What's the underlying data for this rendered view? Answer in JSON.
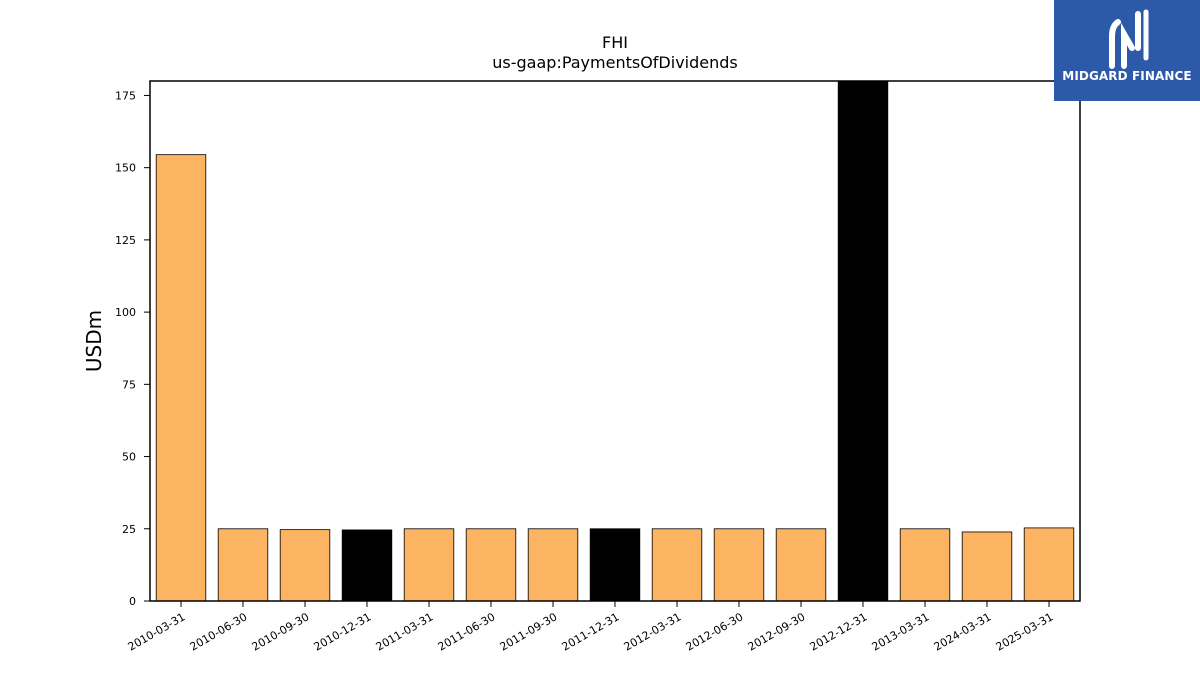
{
  "brand": {
    "name": "MIDGARD FINANCE",
    "background_color": "#2c5aa9",
    "icon": "midgard-logo-icon"
  },
  "chart_data": {
    "type": "bar",
    "title": "FHI",
    "subtitle": "us-gaap:PaymentsOfDividends",
    "xlabel": "",
    "ylabel": "USDm",
    "ylim": [
      0,
      180
    ],
    "yticks": [
      0,
      25,
      50,
      75,
      100,
      125,
      150,
      175
    ],
    "grid": false,
    "categories": [
      "2010-03-31",
      "2010-06-30",
      "2010-09-30",
      "2010-12-31",
      "2011-03-31",
      "2011-06-30",
      "2011-09-30",
      "2011-12-31",
      "2012-03-31",
      "2012-06-30",
      "2012-09-30",
      "2012-12-31",
      "2013-03-31",
      "2024-03-31",
      "2025-03-31"
    ],
    "values": [
      154.5,
      25.0,
      24.7,
      24.6,
      25.0,
      25.0,
      25.0,
      25.0,
      25.0,
      25.0,
      25.0,
      181.0,
      25.0,
      23.9,
      25.3
    ],
    "bar_colors": [
      "#fdb462",
      "#fdb462",
      "#fdb462",
      "#000000",
      "#fdb462",
      "#fdb462",
      "#fdb462",
      "#000000",
      "#fdb462",
      "#fdb462",
      "#fdb462",
      "#000000",
      "#fdb462",
      "#fdb462",
      "#fdb462"
    ]
  }
}
